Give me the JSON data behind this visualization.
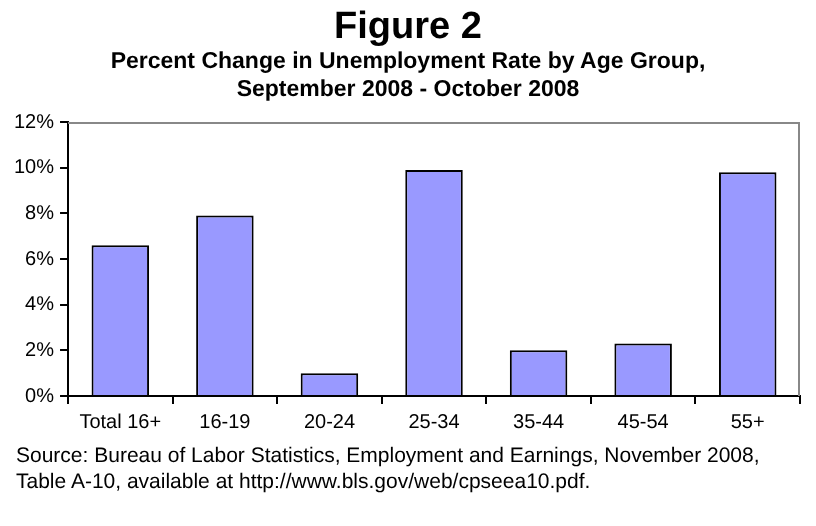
{
  "chart_data": {
    "type": "bar",
    "title": "Figure 2",
    "subtitle": "Percent Change in Unemployment Rate by Age Group, September 2008 - October 2008",
    "categories": [
      "Total 16+",
      "16-19",
      "20-24",
      "25-34",
      "35-44",
      "45-54",
      "55+"
    ],
    "values": [
      6.6,
      7.9,
      1.0,
      9.9,
      2.0,
      2.3,
      9.8
    ],
    "color": "#9999ff",
    "ylim": [
      0,
      12
    ],
    "yticks": [
      {
        "value": 0,
        "label": "0%"
      },
      {
        "value": 2,
        "label": "2%"
      },
      {
        "value": 4,
        "label": "4%"
      },
      {
        "value": 6,
        "label": "6%"
      },
      {
        "value": 8,
        "label": "8%"
      },
      {
        "value": 10,
        "label": "10%"
      },
      {
        "value": 12,
        "label": "12%"
      }
    ],
    "grid": false,
    "legend": false,
    "annotations": [
      "Source: Bureau of Labor Statistics, Employment and Earnings, November 2008, Table A-10, available at http://www.bls.gov/web/cpseea10.pdf."
    ]
  }
}
